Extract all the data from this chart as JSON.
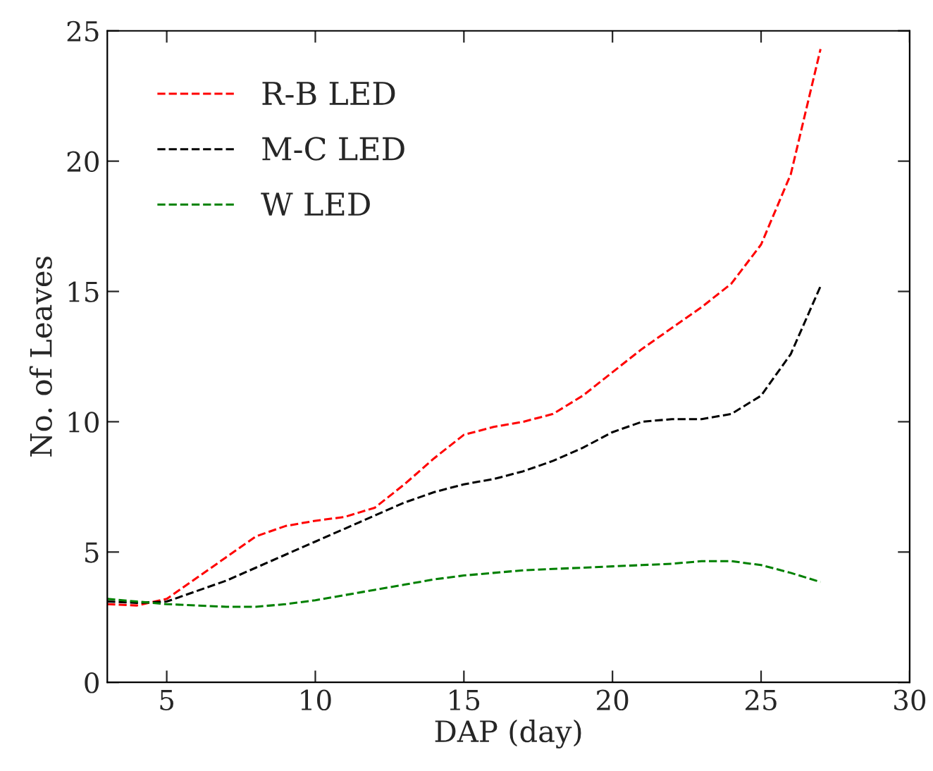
{
  "chart_data": {
    "type": "line",
    "xlabel": "DAP (day)",
    "ylabel": "No. of Leaves",
    "x": [
      3,
      4,
      5,
      6,
      7,
      8,
      9,
      10,
      11,
      12,
      13,
      14,
      15,
      16,
      17,
      18,
      19,
      20,
      21,
      22,
      23,
      24,
      25,
      26,
      27
    ],
    "series": [
      {
        "name": "R-B LED",
        "color": "#ff0000",
        "values": [
          3.0,
          2.95,
          3.2,
          4.0,
          4.8,
          5.6,
          6.0,
          6.2,
          6.35,
          6.7,
          7.6,
          8.6,
          9.5,
          9.8,
          10.0,
          10.3,
          11.0,
          11.9,
          12.8,
          13.6,
          14.4,
          15.3,
          16.8,
          19.5,
          24.3
        ]
      },
      {
        "name": "M-C LED",
        "color": "#000000",
        "values": [
          3.1,
          3.05,
          3.1,
          3.5,
          3.9,
          4.4,
          4.9,
          5.4,
          5.9,
          6.4,
          6.9,
          7.3,
          7.6,
          7.8,
          8.1,
          8.5,
          9.0,
          9.6,
          10.0,
          10.1,
          10.1,
          10.3,
          11.0,
          12.6,
          15.2
        ]
      },
      {
        "name": "W LED",
        "color": "#008000",
        "values": [
          3.2,
          3.1,
          3.0,
          2.95,
          2.9,
          2.9,
          3.0,
          3.15,
          3.35,
          3.55,
          3.75,
          3.95,
          4.1,
          4.2,
          4.3,
          4.35,
          4.4,
          4.45,
          4.5,
          4.55,
          4.65,
          4.65,
          4.5,
          4.2,
          3.85
        ]
      }
    ],
    "xlim": [
      3,
      30
    ],
    "xticks": [
      5,
      10,
      15,
      20,
      25,
      30
    ],
    "ylim": [
      0,
      25
    ],
    "yticks": [
      0,
      5,
      10,
      15,
      20,
      25
    ],
    "grid": false,
    "legend": "top left",
    "line_style": "dashed",
    "marker": "none"
  }
}
